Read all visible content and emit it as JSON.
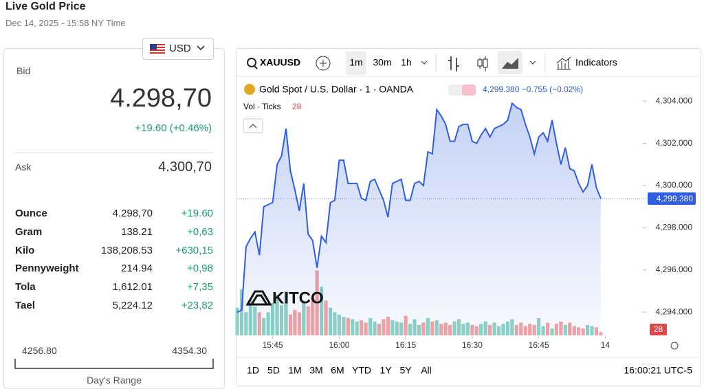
{
  "header": {
    "title": "Live Gold Price",
    "timestamp": "Dec 14, 2025 - 15:58 NY Time"
  },
  "panel": {
    "currency": "USD",
    "bid_label": "Bid",
    "bid": "4.298,70",
    "change": "+19.60 (+0.46%)",
    "ask_label": "Ask",
    "ask": "4.300,70",
    "rows": [
      [
        "Ounce",
        "4.298,70",
        "+19.60"
      ],
      [
        "Gram",
        "138.21",
        "+0,63"
      ],
      [
        "Kilo",
        "138,208.53",
        "+630,15"
      ],
      [
        "Pennyweight",
        "214.94",
        "+0,98"
      ],
      [
        "Tola",
        "1,612.01",
        "+7,35"
      ],
      [
        "Tael",
        "5,224.12",
        "+23,82"
      ]
    ],
    "range_low": "4256.80",
    "range_high": "4354.30",
    "range_label": "Day's Range"
  },
  "toolbar": {
    "symbol": "XAUUSD",
    "intervals": [
      "1m",
      "30m",
      "1h"
    ],
    "indicators": "Indicators"
  },
  "legend": {
    "instrument": "Gold Spot / U.S. Dollar · 1 · OANDA",
    "quote": "4,299.380 −0.755 (−0.02%)",
    "volume_label": "Vol · Ticks",
    "volume_value": "28"
  },
  "logo": "KITCO",
  "chart_data": {
    "type": "line",
    "x": [
      "15:37",
      "15:38",
      "15:39",
      "15:40",
      "15:41",
      "15:42",
      "15:43",
      "15:44",
      "15:45",
      "15:46",
      "15:47",
      "15:48",
      "15:49",
      "15:50",
      "15:51",
      "15:52",
      "15:53",
      "15:54",
      "15:55",
      "15:56",
      "15:57",
      "15:58",
      "15:59",
      "16:00",
      "16:01",
      "16:02",
      "16:03",
      "16:04",
      "16:05",
      "16:06",
      "16:07",
      "16:08",
      "16:09",
      "16:10",
      "16:11",
      "16:12",
      "16:13",
      "16:14",
      "16:15",
      "16:16",
      "16:17",
      "16:18",
      "16:19",
      "16:20",
      "16:21",
      "16:22",
      "16:23",
      "16:24",
      "16:25",
      "16:26",
      "16:27",
      "16:28",
      "16:29",
      "16:30",
      "16:31",
      "16:32",
      "16:33",
      "16:34",
      "16:35",
      "16:36",
      "16:37",
      "16:38",
      "16:39",
      "16:40",
      "16:41",
      "16:42",
      "16:43",
      "16:44",
      "16:45",
      "16:46",
      "16:47",
      "16:48",
      "16:49",
      "16:50",
      "16:51",
      "16:52",
      "16:53",
      "16:54",
      "16:55",
      "16:56",
      "16:57",
      "16:58",
      "16:59"
    ],
    "series": [
      {
        "name": "Gold Spot",
        "color": "#2f5fe0",
        "values": [
          4294.0,
          4294.1,
          4297.1,
          4297.5,
          4297.8,
          4296.7,
          4299.0,
          4299.1,
          4299.2,
          4301.0,
          4301.4,
          4302.7,
          4300.7,
          4299.8,
          4298.8,
          4300.1,
          4297.7,
          4297.4,
          4296.1,
          4297.6,
          4297.3,
          4299.2,
          4299.3,
          4301.2,
          4301.2,
          4300.1,
          4300.1,
          4300.1,
          4299.4,
          4299.3,
          4300.2,
          4300.3,
          4299.8,
          4299.3,
          4298.5,
          4300.1,
          4300.2,
          4300.3,
          4299.3,
          4299.3,
          4300.1,
          4300.2,
          4300.0,
          4301.6,
          4301.5,
          4303.6,
          4303.3,
          4302.9,
          4302.1,
          4302.1,
          4302.8,
          4302.9,
          4302.9,
          4302.1,
          4302.0,
          4302.4,
          4302.7,
          4302.3,
          4302.7,
          4302.8,
          4302.9,
          4303.1,
          4303.9,
          4303.7,
          4303.6,
          4302.9,
          4302.3,
          4301.5,
          4302.3,
          4302.5,
          4302.1,
          4303.1,
          4302.0,
          4301.0,
          4301.8,
          4300.8,
          4300.7,
          4300.1,
          4299.7,
          4300.0,
          4301.0,
          4299.9,
          4299.38
        ]
      },
      {
        "name": "Vol",
        "type": "bar",
        "axis": "y2",
        "up_color": "#8fd3c5",
        "down_color": "#f2a4a4",
        "values": [
          240,
          400,
          200,
          300,
          250,
          200,
          150,
          200,
          280,
          350,
          260,
          380,
          180,
          220,
          200,
          300,
          250,
          320,
          560,
          420,
          300,
          240,
          200,
          180,
          160,
          150,
          140,
          120,
          130,
          110,
          150,
          120,
          100,
          140,
          160,
          130,
          120,
          110,
          170,
          100,
          140,
          90,
          110,
          150,
          120,
          130,
          100,
          110,
          90,
          120,
          140,
          100,
          110,
          90,
          80,
          100,
          120,
          90,
          110,
          80,
          100,
          120,
          140,
          90,
          110,
          80,
          100,
          90,
          150,
          80,
          110,
          60,
          100,
          120,
          90,
          110,
          80,
          70,
          60,
          90,
          80,
          70,
          28
        ]
      }
    ],
    "ylim": [
      4292.9,
      4304.95
    ],
    "yticks": [
      {
        "value": 4294,
        "label": "4,294.000"
      },
      {
        "value": 4296,
        "label": "4,296.000"
      },
      {
        "value": 4298,
        "label": "4,298.000"
      },
      {
        "value": 4300,
        "label": "4,300.000"
      },
      {
        "value": 4302,
        "label": "4,302.000"
      },
      {
        "value": 4304,
        "label": "4,304.000"
      }
    ],
    "y2lim": [
      0,
      700
    ],
    "xlim": [
      "15:37",
      "17:08"
    ],
    "xticks": [
      "15:45",
      "16:00",
      "16:15",
      "16:30",
      "16:45",
      {
        "value": "17:00",
        "label": "14"
      }
    ],
    "last_value_label": "4,299.380",
    "last_volume_label": "28"
  },
  "ranges": [
    "1D",
    "5D",
    "1M",
    "3M",
    "6M",
    "YTD",
    "1Y",
    "5Y",
    "All"
  ],
  "clock": "16:00:21 UTC-5"
}
